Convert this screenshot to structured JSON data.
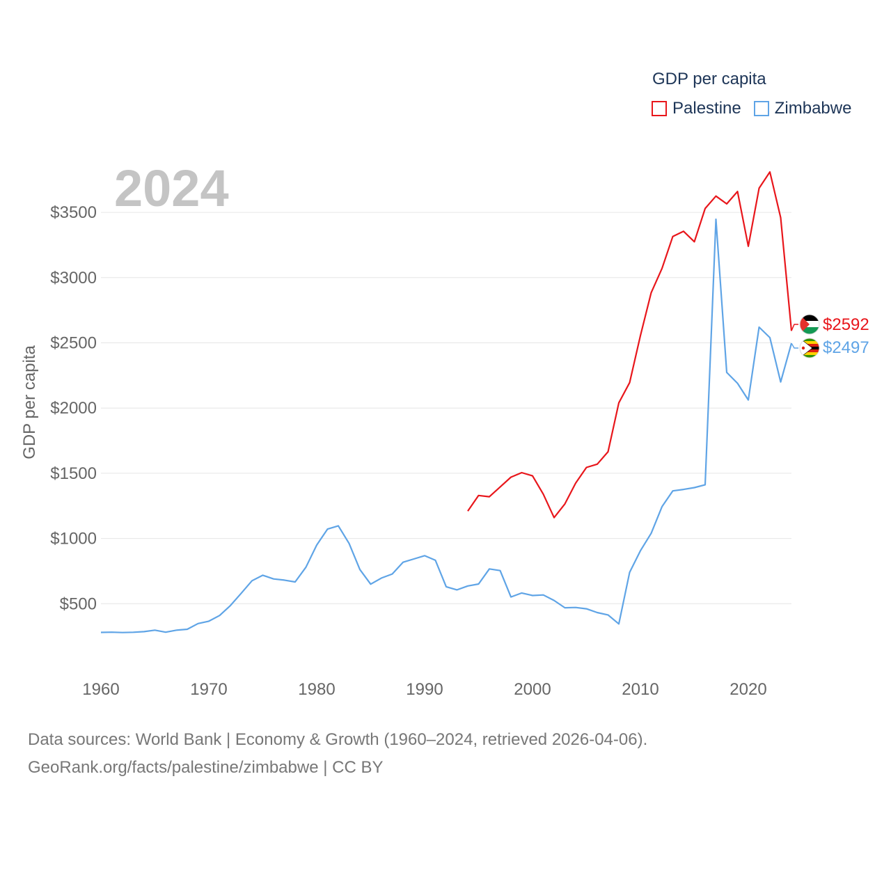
{
  "legend": {
    "title": "GDP per capita",
    "items": [
      {
        "name": "Palestine",
        "color": "#e8161b"
      },
      {
        "name": "Zimbabwe",
        "color": "#5fa4e6"
      }
    ]
  },
  "year_label": "2024",
  "footer": {
    "line1": "Data sources: World Bank | Economy & Growth (1960–2024, retrieved 2026-04-06).",
    "line2": "GeoRank.org/facts/palestine/zimbabwe | CC BY"
  },
  "chart_data": {
    "type": "line",
    "title": "GDP per capita",
    "xlabel": "",
    "ylabel": "GDP per capita",
    "xlim": [
      1960,
      2024
    ],
    "ylim": [
      0,
      3800
    ],
    "grid": true,
    "legend_position": "top-right",
    "x_ticks": [
      1960,
      1970,
      1980,
      1990,
      2000,
      2010,
      2020
    ],
    "y_ticks": [
      500,
      1000,
      1500,
      2000,
      2500,
      3000,
      3500
    ],
    "y_tick_labels": [
      "$500",
      "$1000",
      "$1500",
      "$2000",
      "$2500",
      "$3000",
      "$3500"
    ],
    "series": [
      {
        "name": "Palestine",
        "color": "#e8161b",
        "end_label": "$2592",
        "points": [
          [
            1994,
            1210
          ],
          [
            1995,
            1330
          ],
          [
            1996,
            1320
          ],
          [
            1997,
            1395
          ],
          [
            1998,
            1470
          ],
          [
            1999,
            1505
          ],
          [
            2000,
            1480
          ],
          [
            2001,
            1340
          ],
          [
            2002,
            1160
          ],
          [
            2003,
            1265
          ],
          [
            2004,
            1425
          ],
          [
            2005,
            1545
          ],
          [
            2006,
            1570
          ],
          [
            2007,
            1665
          ],
          [
            2008,
            2040
          ],
          [
            2009,
            2195
          ],
          [
            2010,
            2555
          ],
          [
            2011,
            2885
          ],
          [
            2012,
            3070
          ],
          [
            2013,
            3315
          ],
          [
            2014,
            3355
          ],
          [
            2015,
            3275
          ],
          [
            2016,
            3530
          ],
          [
            2017,
            3625
          ],
          [
            2018,
            3565
          ],
          [
            2019,
            3660
          ],
          [
            2020,
            3240
          ],
          [
            2021,
            3685
          ],
          [
            2022,
            3810
          ],
          [
            2023,
            3460
          ],
          [
            2024,
            2592
          ]
        ]
      },
      {
        "name": "Zimbabwe",
        "color": "#5fa4e6",
        "end_label": "$2497",
        "points": [
          [
            1960,
            280
          ],
          [
            1961,
            282
          ],
          [
            1962,
            279
          ],
          [
            1963,
            281
          ],
          [
            1964,
            286
          ],
          [
            1965,
            297
          ],
          [
            1966,
            282
          ],
          [
            1967,
            297
          ],
          [
            1968,
            304
          ],
          [
            1969,
            348
          ],
          [
            1970,
            366
          ],
          [
            1971,
            410
          ],
          [
            1972,
            486
          ],
          [
            1973,
            580
          ],
          [
            1974,
            676
          ],
          [
            1975,
            718
          ],
          [
            1976,
            690
          ],
          [
            1977,
            681
          ],
          [
            1978,
            667
          ],
          [
            1979,
            780
          ],
          [
            1980,
            950
          ],
          [
            1981,
            1072
          ],
          [
            1982,
            1097
          ],
          [
            1983,
            962
          ],
          [
            1984,
            762
          ],
          [
            1985,
            650
          ],
          [
            1986,
            697
          ],
          [
            1987,
            728
          ],
          [
            1988,
            818
          ],
          [
            1989,
            843
          ],
          [
            1990,
            868
          ],
          [
            1991,
            833
          ],
          [
            1992,
            630
          ],
          [
            1993,
            606
          ],
          [
            1994,
            636
          ],
          [
            1995,
            651
          ],
          [
            1996,
            767
          ],
          [
            1997,
            754
          ],
          [
            1998,
            552
          ],
          [
            1999,
            582
          ],
          [
            2000,
            563
          ],
          [
            2001,
            567
          ],
          [
            2002,
            525
          ],
          [
            2003,
            469
          ],
          [
            2004,
            471
          ],
          [
            2005,
            461
          ],
          [
            2006,
            432
          ],
          [
            2007,
            414
          ],
          [
            2008,
            345
          ],
          [
            2009,
            740
          ],
          [
            2010,
            906
          ],
          [
            2011,
            1040
          ],
          [
            2012,
            1244
          ],
          [
            2013,
            1365
          ],
          [
            2014,
            1376
          ],
          [
            2015,
            1390
          ],
          [
            2016,
            1412
          ],
          [
            2017,
            3447
          ],
          [
            2018,
            2273
          ],
          [
            2019,
            2190
          ],
          [
            2020,
            2062
          ],
          [
            2021,
            2620
          ],
          [
            2022,
            2540
          ],
          [
            2023,
            2200
          ],
          [
            2024,
            2497
          ]
        ]
      }
    ]
  }
}
